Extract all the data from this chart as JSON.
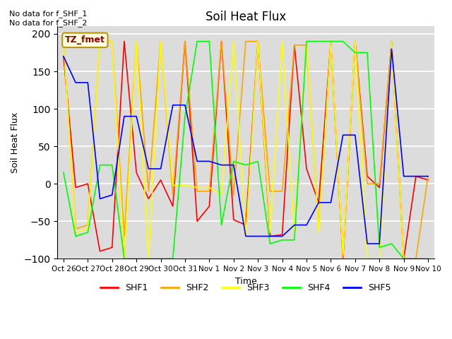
{
  "title": "Soil Heat Flux",
  "ylabel": "Soil Heat Flux",
  "xlabel": "Time",
  "ylim": [
    -100,
    210
  ],
  "annotation_text": "No data for f_SHF_1\nNo data for f_SHF_2",
  "box_label": "TZ_fmet",
  "colors": {
    "SHF1": "red",
    "SHF2": "orange",
    "SHF3": "yellow",
    "SHF4": "lime",
    "SHF5": "blue"
  },
  "xtick_labels": [
    "Oct 26",
    "Oct 27",
    "Oct 28",
    "Oct 29",
    "Oct 30",
    "Oct 31",
    "Nov 1",
    "Nov 2",
    "Nov 3",
    "Nov 4",
    "Nov 5",
    "Nov 6",
    "Nov 7",
    "Nov 8",
    "Nov 9",
    "Nov 10"
  ],
  "xtick_positions": [
    0,
    2,
    4,
    6,
    8,
    10,
    12,
    14,
    16,
    18,
    20,
    22,
    24,
    26,
    28,
    30
  ],
  "SHF1": [
    170,
    -5,
    0,
    -90,
    -85,
    190,
    15,
    -20,
    5,
    -30,
    190,
    -50,
    -30,
    190,
    -48,
    -55,
    190,
    -70,
    -68,
    185,
    20,
    -25,
    190,
    -100,
    190,
    10,
    -5,
    190,
    -100,
    10,
    5
  ],
  "SHF2": [
    190,
    -60,
    -55,
    190,
    190,
    -70,
    190,
    -10,
    190,
    -15,
    190,
    -10,
    -10,
    190,
    -15,
    190,
    190,
    -10,
    -10,
    185,
    185,
    -60,
    185,
    -100,
    190,
    0,
    0,
    190,
    -100,
    -100,
    10
  ],
  "SHF3": [
    190,
    -65,
    -60,
    190,
    190,
    -100,
    190,
    -100,
    190,
    -2,
    -2,
    -5,
    -5,
    -15,
    190,
    -70,
    190,
    -65,
    190,
    -65,
    190,
    -65,
    190,
    -95,
    190,
    -100,
    -100,
    190,
    -100,
    -100,
    -100
  ],
  "SHF4": [
    15,
    -70,
    -65,
    25,
    25,
    -100,
    -100,
    -100,
    -100,
    -100,
    90,
    190,
    190,
    -55,
    30,
    25,
    30,
    -80,
    -75,
    -75,
    190,
    190,
    190,
    190,
    175,
    175,
    -85,
    -80,
    -100,
    -100,
    -100
  ],
  "SHF5": [
    170,
    135,
    135,
    -20,
    -15,
    90,
    90,
    20,
    20,
    105,
    105,
    30,
    30,
    25,
    25,
    -70,
    -70,
    -70,
    -70,
    -55,
    -55,
    -25,
    -25,
    65,
    65,
    -80,
    -80,
    180,
    10,
    10,
    10
  ]
}
